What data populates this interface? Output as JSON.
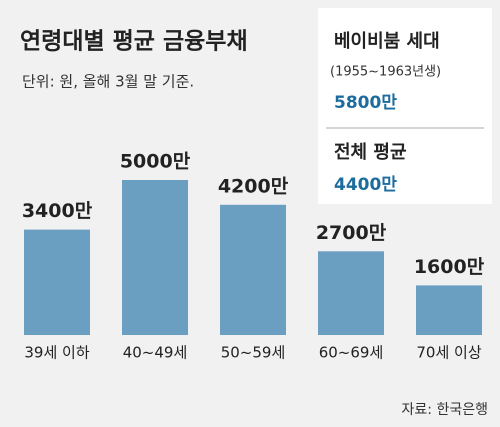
{
  "chart_data": {
    "type": "bar",
    "title": "연령대별 평균 금융부채",
    "subtitle": "단위: 원, 올해 3월 말 기준.",
    "source": "자료: 한국은행",
    "categories": [
      "39세 이하",
      "40~49세",
      "50~59세",
      "60~69세",
      "70세 이상"
    ],
    "values": [
      3400,
      5000,
      4200,
      2700,
      1600
    ],
    "value_labels": [
      "3400만",
      "5000만",
      "4200만",
      "2700만",
      "1600만"
    ],
    "color": "#6b9fc2",
    "annotations": [
      {
        "title": "베이비붐 세대",
        "note": "(1955~1963년생)",
        "text": "5800만"
      },
      {
        "title": "전체 평균",
        "text": "4400만"
      }
    ]
  }
}
